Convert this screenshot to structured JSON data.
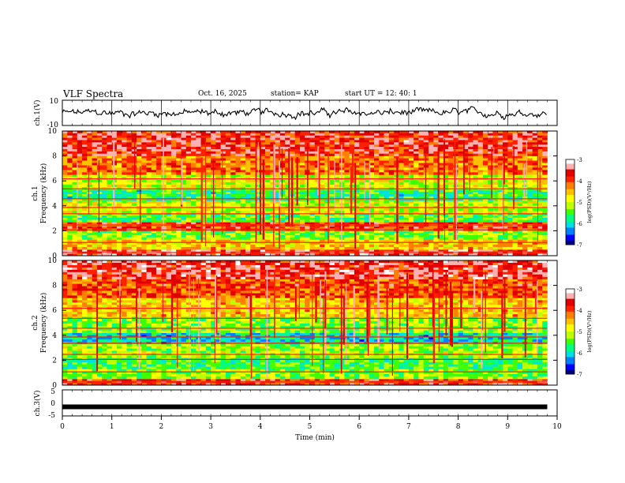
{
  "header": {
    "title": "VLF Spectra",
    "date": "Oct. 16, 2025",
    "station": "station= KAP",
    "start_ut": "start  UT  =   12: 40: 1"
  },
  "colorscale": {
    "min": -7,
    "max": -3,
    "ticks": [
      "-3",
      "-4",
      "-5",
      "-6",
      "-7"
    ],
    "label": "log(PSD)(V²/Hz)",
    "colors": [
      "#00007a",
      "#0000ff",
      "#0080ff",
      "#00e0e0",
      "#00ff80",
      "#40ff00",
      "#c0ff00",
      "#ffff00",
      "#ffc000",
      "#ff8000",
      "#ff2000",
      "#e00000",
      "#ffb0b0",
      "#ffffff"
    ]
  },
  "chart_data": [
    {
      "type": "line",
      "name": "ch1-waveform",
      "ylabel": "ch.1(V)",
      "ylim": [
        -10,
        10
      ],
      "yticks": [
        "10",
        "-10"
      ],
      "xlim": [
        0,
        10
      ],
      "description_values": "noisy broadband waveform oscillating roughly between -6 and 6 V over 0-9.8 min"
    },
    {
      "type": "heatmap",
      "name": "ch1-spectrogram",
      "ylabel": "ch.1 Frequency (kHz)",
      "ylim": [
        0,
        10
      ],
      "yticks": [
        "0",
        "2",
        "4",
        "6",
        "8",
        "10"
      ],
      "xlim": [
        0,
        10
      ],
      "x_end": 9.8,
      "bands": [
        {
          "from": 0,
          "to": 0.5,
          "level": -3.6
        },
        {
          "from": 0.5,
          "to": 1.3,
          "level": -4.6
        },
        {
          "from": 1.3,
          "to": 2.0,
          "level": -5.3
        },
        {
          "from": 2.0,
          "to": 2.7,
          "level": -3.9
        },
        {
          "from": 2.7,
          "to": 3.4,
          "level": -5.5
        },
        {
          "from": 3.4,
          "to": 4.4,
          "level": -5.0
        },
        {
          "from": 4.4,
          "to": 5.3,
          "level": -5.7
        },
        {
          "from": 5.3,
          "to": 6.5,
          "level": -5.0
        },
        {
          "from": 6.5,
          "to": 8.0,
          "level": -4.2
        },
        {
          "from": 8.0,
          "to": 10.0,
          "level": -3.7
        }
      ]
    },
    {
      "type": "heatmap",
      "name": "ch2-spectrogram",
      "ylabel": "ch.2 Frequency (kHz)",
      "ylim": [
        0,
        10
      ],
      "yticks": [
        "0",
        "2",
        "4",
        "6",
        "8",
        "10"
      ],
      "xlim": [
        0,
        10
      ],
      "x_end": 9.8,
      "bands": [
        {
          "from": 0,
          "to": 0.5,
          "level": -3.8
        },
        {
          "from": 0.5,
          "to": 1.3,
          "level": -5.3
        },
        {
          "from": 1.3,
          "to": 2.2,
          "level": -5.6
        },
        {
          "from": 2.2,
          "to": 3.3,
          "level": -5.2
        },
        {
          "from": 3.3,
          "to": 4.2,
          "level": -6.0
        },
        {
          "from": 4.2,
          "to": 5.5,
          "level": -5.3
        },
        {
          "from": 5.5,
          "to": 7.0,
          "level": -4.6
        },
        {
          "from": 7.0,
          "to": 8.5,
          "level": -4.0
        },
        {
          "from": 8.5,
          "to": 10.0,
          "level": -3.6
        }
      ]
    },
    {
      "type": "line",
      "name": "ch3-waveform",
      "ylabel": "ch.3(V)",
      "ylim": [
        -5,
        5
      ],
      "yticks": [
        "5",
        "0",
        "-5"
      ],
      "xlim": [
        0,
        10
      ],
      "value": -1.5
    }
  ],
  "xaxis": {
    "label": "Time  (min)",
    "ticks": [
      "0",
      "1",
      "2",
      "3",
      "4",
      "5",
      "6",
      "7",
      "8",
      "9",
      "10"
    ],
    "min": 0,
    "max": 10
  }
}
